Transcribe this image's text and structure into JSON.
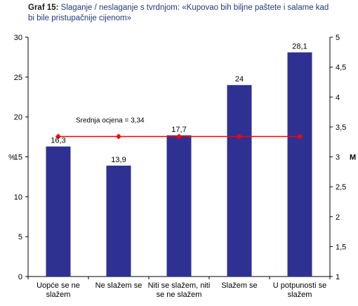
{
  "figure": {
    "label": "Graf 15:",
    "caption": "Slaganje / neslaganje s tvrdnjom: «Kupovao bih biljne paštete i salame kad bi bile pristupačnije cijenom»"
  },
  "chart_data": {
    "type": "bar",
    "categories": [
      [
        "Uopće se ne",
        "slažem"
      ],
      [
        "Ne slažem se"
      ],
      [
        "Niti se slažem, niti",
        "se ne slažem"
      ],
      [
        "Slažem se"
      ],
      [
        "U potpunosti se",
        "slažem"
      ]
    ],
    "series": [
      {
        "type": "bar",
        "axis": "left",
        "values": [
          16.3,
          13.9,
          17.7,
          24,
          28.1
        ],
        "labels": [
          "16,3",
          "13,9",
          "17,7",
          "24",
          "28,1"
        ],
        "color": "#2e3192"
      },
      {
        "type": "line",
        "axis": "right",
        "values": [
          3.34,
          3.34,
          3.34,
          3.34,
          3.34
        ],
        "color": "#ff0000"
      }
    ],
    "annotation": "Srednja ocjena = 3,34",
    "ylabel": "%",
    "y2label": "M",
    "ylim": [
      0,
      30
    ],
    "yticks": [
      0,
      5,
      10,
      15,
      20,
      25,
      30
    ],
    "y2lim": [
      1,
      5
    ],
    "y2ticks": [
      "1",
      "1,5",
      "2",
      "2,5",
      "3",
      "3,5",
      "4",
      "4,5",
      "5"
    ],
    "grid": false,
    "legend": "none"
  }
}
